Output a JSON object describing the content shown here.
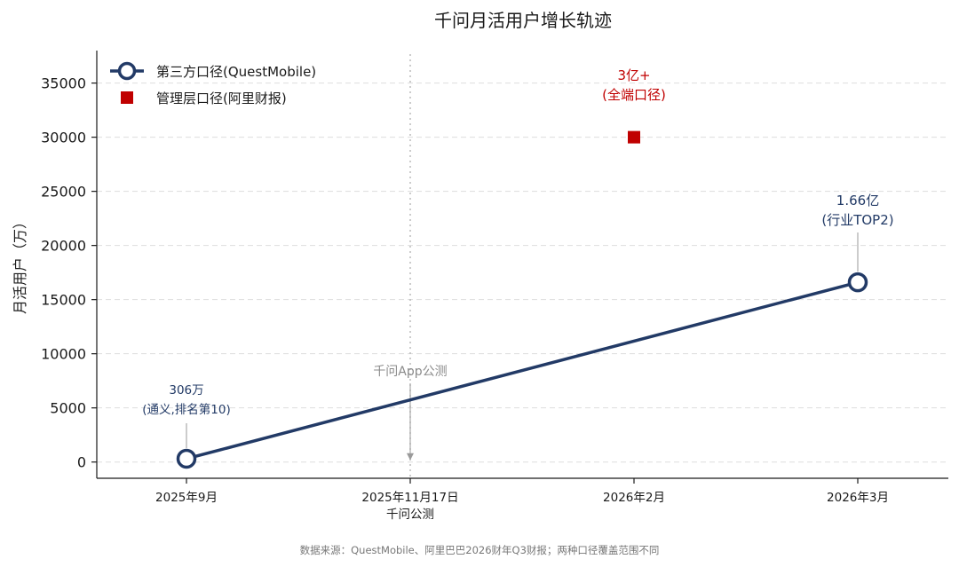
{
  "chart_data": {
    "type": "line",
    "title": "千问月活用户增长轨迹",
    "xlabel": "",
    "ylabel": "月活用户（万）",
    "categories": [
      "2025年9月",
      "2025年11月17日",
      "2026年2月",
      "2026年3月"
    ],
    "category_sublabels": [
      "",
      "千问公测",
      "",
      ""
    ],
    "ylim": [
      -1500,
      38000
    ],
    "yticks": [
      "0",
      "5000",
      "10000",
      "15000",
      "20000",
      "25000",
      "30000",
      "35000"
    ],
    "ytick_values": [
      0,
      5000,
      10000,
      15000,
      20000,
      25000,
      30000,
      35000
    ],
    "grid": true,
    "legend_position": "top-left",
    "series": [
      {
        "name": "第三方口径(QuestMobile)",
        "marker": "circle",
        "color": "#223a66",
        "x": [
          0,
          3
        ],
        "values": [
          306,
          16600
        ]
      },
      {
        "name": "管理层口径(阿里财报)",
        "marker": "square",
        "color": "#c00000",
        "x": [
          2
        ],
        "values": [
          30000
        ]
      }
    ],
    "annotations": {
      "first": {
        "line1": "306万",
        "line2": "(通义,排名第10)"
      },
      "last": {
        "line1": "1.66亿",
        "line2": "(行业TOP2)"
      },
      "mgmt": {
        "line1": "3亿+",
        "line2": "(全端口径)"
      },
      "launch": {
        "text": "千问App公测"
      }
    },
    "source": "数据来源：QuestMobile、阿里巴巴2026财年Q3财报；两种口径覆盖范围不同"
  }
}
